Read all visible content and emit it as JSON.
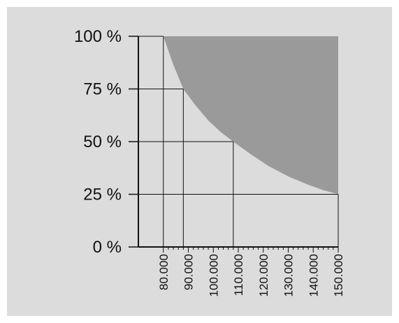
{
  "chart_data": {
    "type": "area",
    "title": "",
    "xlabel": "",
    "ylabel": "",
    "x_ticks": [
      "80.000",
      "90.000",
      "100.000",
      "110.000",
      "120.000",
      "130.000",
      "140.000",
      "150.000"
    ],
    "y_ticks": [
      "0 %",
      "25 %",
      "50 %",
      "75 %",
      "100 %"
    ],
    "xlim": [
      70000,
      150000
    ],
    "ylim": [
      0,
      100
    ],
    "grid": false,
    "legend": "none",
    "reference_lines": [
      {
        "x": 80000,
        "y": 100
      },
      {
        "x": 88000,
        "y": 75
      },
      {
        "x": 108000,
        "y": 50
      },
      {
        "x": 150000,
        "y": 25
      }
    ],
    "series": [
      {
        "values": [
          {
            "x": 80000,
            "y": 100
          },
          {
            "x": 84000,
            "y": 86.5
          },
          {
            "x": 88000,
            "y": 75
          },
          {
            "x": 93000,
            "y": 67
          },
          {
            "x": 98000,
            "y": 60
          },
          {
            "x": 103000,
            "y": 54.5
          },
          {
            "x": 108000,
            "y": 50
          },
          {
            "x": 115000,
            "y": 44
          },
          {
            "x": 122000,
            "y": 38.5
          },
          {
            "x": 130000,
            "y": 33.5
          },
          {
            "x": 138000,
            "y": 29.5
          },
          {
            "x": 144000,
            "y": 27
          },
          {
            "x": 150000,
            "y": 25
          }
        ]
      }
    ],
    "colors": {
      "background": "#dcdcdc",
      "fill": "#9a9a9a",
      "axis": "#111111"
    }
  }
}
